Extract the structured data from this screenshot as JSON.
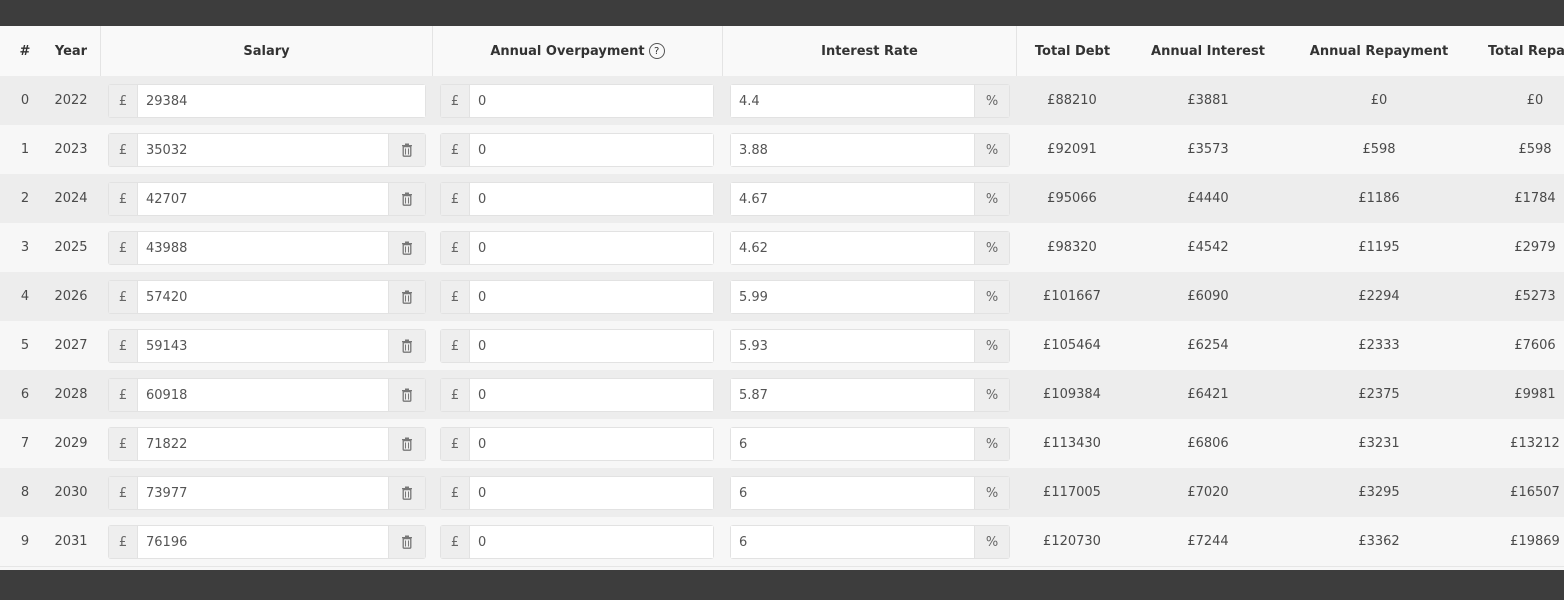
{
  "headers": {
    "idx": "#",
    "year": "Year",
    "salary": "Salary",
    "overpayment": "Annual Overpayment",
    "overpayment_help": "?",
    "rate": "Interest Rate",
    "total_debt": "Total Debt",
    "annual_interest": "Annual Interest",
    "annual_repayment": "Annual Repayment",
    "total_repaid": "Total Repa"
  },
  "currency_symbol": "£",
  "percent_symbol": "%",
  "rows": [
    {
      "idx": "0",
      "year": "2022",
      "salary": "29384",
      "overpayment": "0",
      "rate": "4.4",
      "total_debt": "£88210",
      "annual_interest": "£3881",
      "annual_repayment": "£0",
      "total_repaid": "£0"
    },
    {
      "idx": "1",
      "year": "2023",
      "salary": "35032",
      "overpayment": "0",
      "rate": "3.88",
      "total_debt": "£92091",
      "annual_interest": "£3573",
      "annual_repayment": "£598",
      "total_repaid": "£598"
    },
    {
      "idx": "2",
      "year": "2024",
      "salary": "42707",
      "overpayment": "0",
      "rate": "4.67",
      "total_debt": "£95066",
      "annual_interest": "£4440",
      "annual_repayment": "£1186",
      "total_repaid": "£1784"
    },
    {
      "idx": "3",
      "year": "2025",
      "salary": "43988",
      "overpayment": "0",
      "rate": "4.62",
      "total_debt": "£98320",
      "annual_interest": "£4542",
      "annual_repayment": "£1195",
      "total_repaid": "£2979"
    },
    {
      "idx": "4",
      "year": "2026",
      "salary": "57420",
      "overpayment": "0",
      "rate": "5.99",
      "total_debt": "£101667",
      "annual_interest": "£6090",
      "annual_repayment": "£2294",
      "total_repaid": "£5273"
    },
    {
      "idx": "5",
      "year": "2027",
      "salary": "59143",
      "overpayment": "0",
      "rate": "5.93",
      "total_debt": "£105464",
      "annual_interest": "£6254",
      "annual_repayment": "£2333",
      "total_repaid": "£7606"
    },
    {
      "idx": "6",
      "year": "2028",
      "salary": "60918",
      "overpayment": "0",
      "rate": "5.87",
      "total_debt": "£109384",
      "annual_interest": "£6421",
      "annual_repayment": "£2375",
      "total_repaid": "£9981"
    },
    {
      "idx": "7",
      "year": "2029",
      "salary": "71822",
      "overpayment": "0",
      "rate": "6",
      "total_debt": "£113430",
      "annual_interest": "£6806",
      "annual_repayment": "£3231",
      "total_repaid": "£13212"
    },
    {
      "idx": "8",
      "year": "2030",
      "salary": "73977",
      "overpayment": "0",
      "rate": "6",
      "total_debt": "£117005",
      "annual_interest": "£7020",
      "annual_repayment": "£3295",
      "total_repaid": "£16507"
    },
    {
      "idx": "9",
      "year": "2031",
      "salary": "76196",
      "overpayment": "0",
      "rate": "6",
      "total_debt": "£120730",
      "annual_interest": "£7244",
      "annual_repayment": "£3362",
      "total_repaid": "£19869"
    }
  ],
  "icons": {
    "delete": "trash-icon",
    "help": "help-circle-icon"
  }
}
